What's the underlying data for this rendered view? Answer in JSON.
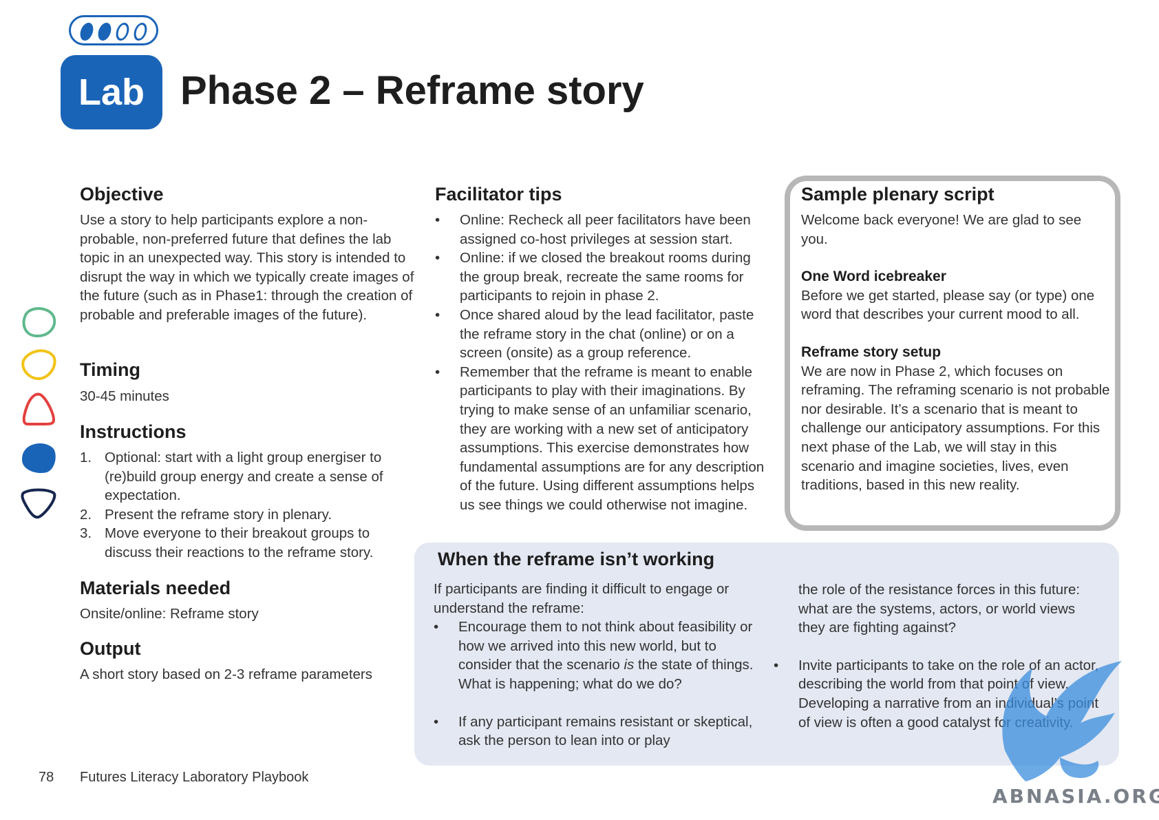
{
  "header": {
    "badge": "Lab",
    "title": "Phase 2 – Reframe story",
    "progress": {
      "filled": 2,
      "total": 4
    }
  },
  "objective": {
    "heading": "Objective",
    "body": "Use a story to help participants explore a non-probable, non-preferred future that defines the lab topic in an unexpected way. This story is intended to disrupt the way in which we typically create images of the future (such as in Phase1: through the creation of probable and preferable images of the future)."
  },
  "timing": {
    "heading": "Timing",
    "body": "30-45 minutes"
  },
  "instructions": {
    "heading": "Instructions",
    "items": [
      {
        "num": "1.",
        "text": "Optional: start with a light group energiser to (re)build group energy and create a sense of expectation."
      },
      {
        "num": "2.",
        "text": "Present the reframe story in plenary."
      },
      {
        "num": "3.",
        "text": "Move everyone to their breakout groups to discuss their reactions to the reframe story."
      }
    ]
  },
  "materials": {
    "heading": "Materials needed",
    "body": "Onsite/online: Reframe story"
  },
  "output": {
    "heading": "Output",
    "body": "A short story based on 2-3 reframe parameters"
  },
  "facilitator_tips": {
    "heading": "Facilitator tips",
    "items": [
      "Online: Recheck all peer facilitators have been assigned co-host privileges at session start.",
      "Online: if we closed the breakout rooms during the group break, recreate the same rooms for participants to rejoin in phase 2.",
      "Once shared aloud by the lead facilitator, paste the reframe story in the chat (online) or on a screen (onsite) as a group reference.",
      "Remember that the reframe is meant to enable participants to play with their imaginations. By trying to make sense of an unfamiliar scenario, they are working with a new set of anticipatory assumptions. This exercise demonstrates how fundamental assumptions are for any description of the future. Using different assumptions helps us see things we could otherwise not imagine."
    ]
  },
  "sample_script": {
    "heading": "Sample plenary script",
    "welcome": "Welcome back everyone! We are glad to see you.",
    "icebreaker_heading": "One Word icebreaker",
    "icebreaker_body": "Before we get started, please say (or type) one word that describes your current mood to all.",
    "setup_heading": "Reframe story setup",
    "setup_body": "We are now in Phase 2, which focuses on reframing. The reframing scenario is not probable nor desirable. It’s a scenario that is meant to challenge our anticipatory assumptions. For this next phase of the Lab, we will stay in this scenario and imagine societies, lives, even traditions, based in this new reality."
  },
  "not_working": {
    "heading": "When the reframe isn’t working",
    "intro": "If participants are finding it difficult to engage or understand the reframe:",
    "item1_before": "Encourage them to not think about feasibility or how we arrived into this new world, but to consider that the scenario ",
    "item1_em": "is",
    "item1_after": " the state of things. What is happening; what do we do?",
    "item2_left": "If any participant remains resistant or skeptical, ask the person to lean into or play",
    "item2_right": "the role of the resistance forces in this future: what are the systems, actors, or world views they are fighting against?",
    "item3": "Invite participants to take on the role of an actor, describing the world from that point of view. Developing a narrative from an individual’s point of view is often a good catalyst for creativity."
  },
  "footer": {
    "page_number": "78",
    "title": "Futures Literacy Laboratory Playbook"
  },
  "watermark": {
    "text": "ABNASIA.ORG"
  },
  "colors": {
    "brand_blue": "#1a64b8",
    "box_border": "#b7b7b7",
    "box_fill": "#e4e8f2"
  },
  "icons": [
    "green-blob-icon",
    "yellow-blob-icon",
    "red-blob-icon",
    "blue-blob-icon",
    "navy-blob-icon",
    "griffin-watermark-icon"
  ]
}
